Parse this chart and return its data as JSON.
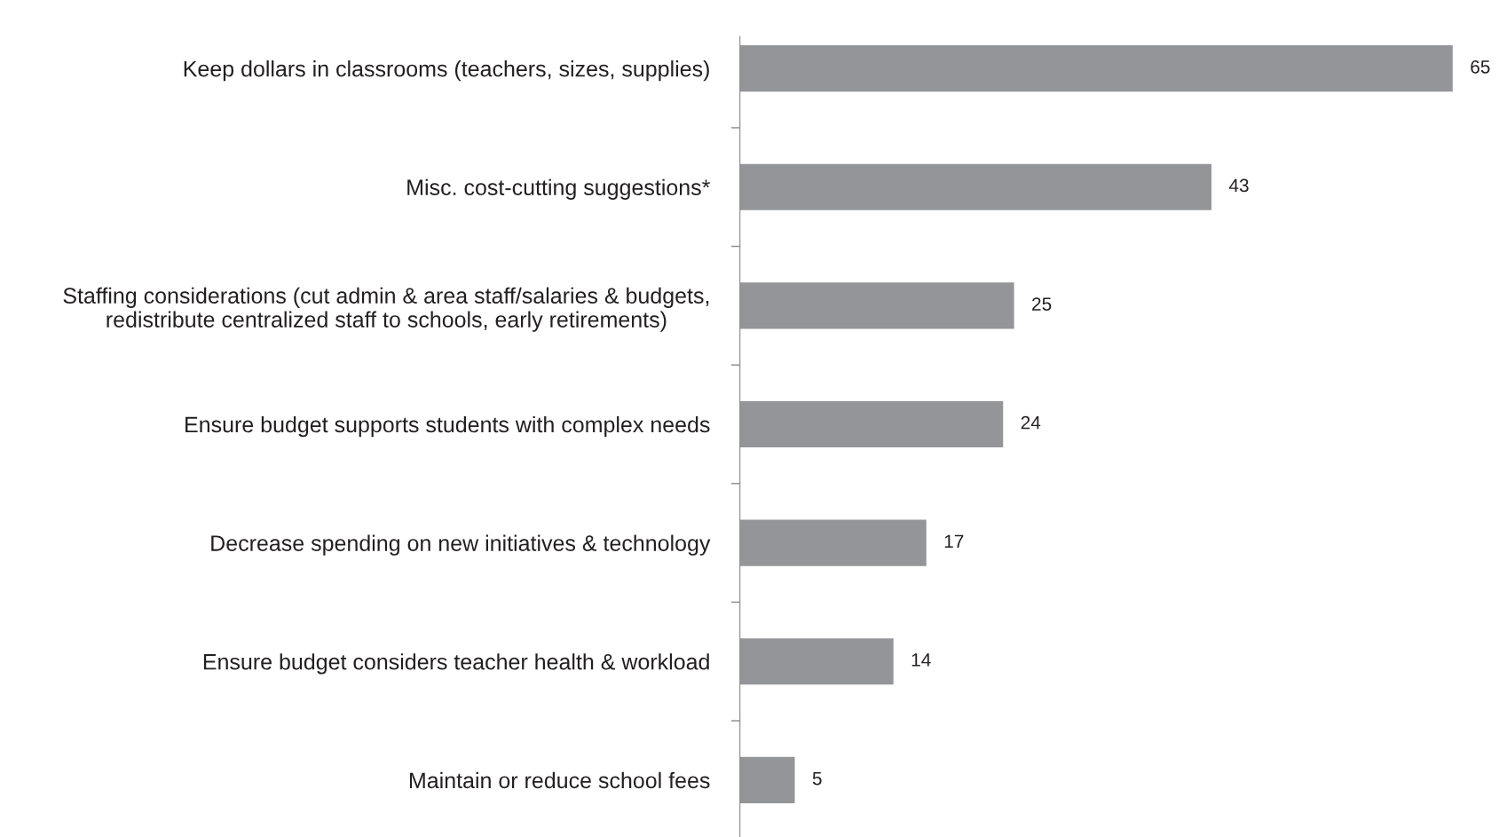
{
  "chart_data": {
    "type": "bar",
    "orientation": "horizontal",
    "categories": [
      "Keep dollars in classrooms (teachers, sizes, supplies)",
      "Misc. cost-cutting suggestions*",
      "Staffing considerations (cut admin & area staff/salaries & budgets,\nredistribute centralized staff to schools, early retirements)",
      "Ensure budget supports students with complex needs",
      "Decrease spending on new initiatives & technology",
      "Ensure budget considers teacher health & workload",
      "Maintain or reduce school fees"
    ],
    "values": [
      65,
      43,
      25,
      24,
      17,
      14,
      5
    ],
    "color": "#939598",
    "data_labels": true,
    "grid": false,
    "legend": false,
    "tick_labels": "y"
  }
}
